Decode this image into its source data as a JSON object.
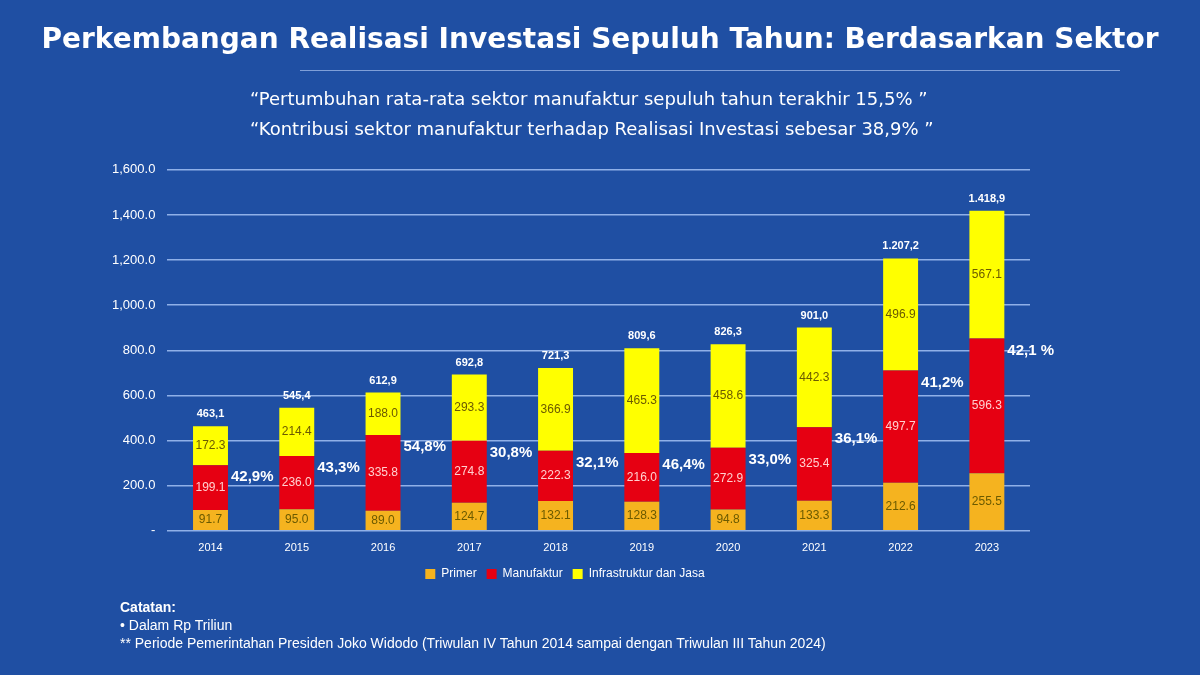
{
  "chart_data": {
    "type": "bar",
    "title": "Perkembangan Realisasi Investasi Sepuluh Tahun: Berdasarkan Sektor",
    "stacked": true,
    "categories": [
      "2014",
      "2015",
      "2016",
      "2017",
      "2018",
      "2019",
      "2020",
      "2021",
      "2022",
      "2023"
    ],
    "series": [
      {
        "name": "Primer",
        "color": "#f5b31f",
        "values": [
          91.7,
          95.0,
          89.0,
          124.7,
          132.1,
          128.3,
          94.8,
          133.3,
          212.6,
          255.5
        ],
        "value_labels": [
          "91.7",
          "95.0",
          "89.0",
          "124.7",
          "132.1",
          "128.3",
          "94.8",
          "133.3",
          "212.6",
          "255.5"
        ]
      },
      {
        "name": "Manufaktur",
        "color": "#e60012",
        "values": [
          199.1,
          236.0,
          335.8,
          274.8,
          222.3,
          216.0,
          272.9,
          325.4,
          497.7,
          596.3
        ],
        "value_labels": [
          "199.1",
          "236.0",
          "335.8",
          "274.8",
          "222.3",
          "216.0",
          "272.9",
          "325.4",
          "497.7",
          "596.3"
        ]
      },
      {
        "name": "Infrastruktur dan Jasa",
        "color": "#ffff00",
        "values": [
          172.3,
          214.4,
          188.0,
          293.3,
          366.9,
          465.3,
          458.6,
          442.3,
          496.9,
          567.1
        ],
        "value_labels": [
          "172.3",
          "214.4",
          "188.0",
          "293.3",
          "366.9",
          "465.3",
          "458.6",
          "442.3",
          "496.9",
          "567.1"
        ]
      }
    ],
    "totals": [
      "463,1",
      "545,4",
      "612,9",
      "692,8",
      "721,3",
      "809,6",
      "826,3",
      "901,0",
      "1.207,2",
      "1.418,9"
    ],
    "ylim": [
      0,
      1600
    ],
    "yticks": [
      {
        "value": 0,
        "label": "-"
      },
      {
        "value": 200,
        "label": "200.0"
      },
      {
        "value": 400,
        "label": "400.0"
      },
      {
        "value": 600,
        "label": "600.0"
      },
      {
        "value": 800,
        "label": "800.0"
      },
      {
        "value": 1000,
        "label": "1,000.0"
      },
      {
        "value": 1200,
        "label": "1,200.0"
      },
      {
        "value": 1400,
        "label": "1,400.0"
      },
      {
        "value": 1600,
        "label": "1,600.0"
      }
    ],
    "grid": "y",
    "legend": "bottom",
    "annotations": [
      "“Pertumbuhan rata-rata sektor manufaktur sepuluh tahun terakhir 15,5% ”",
      "“Kontribusi sektor manufaktur terhadap Realisasi Investasi sebesar 38,9% ”",
      "42,9%",
      "43,3%",
      "54,8%",
      "30,8%",
      "32,1%",
      "46,4%",
      "33,0%",
      "36,1%",
      "41,2%",
      "42,1 %",
      "Catatan:",
      "• Dalam Rp Triliun",
      "** Periode Pemerintahan Presiden Joko Widodo (Triwulan IV Tahun 2014 sampai dengan Triwulan III Tahun 2024)"
    ]
  }
}
